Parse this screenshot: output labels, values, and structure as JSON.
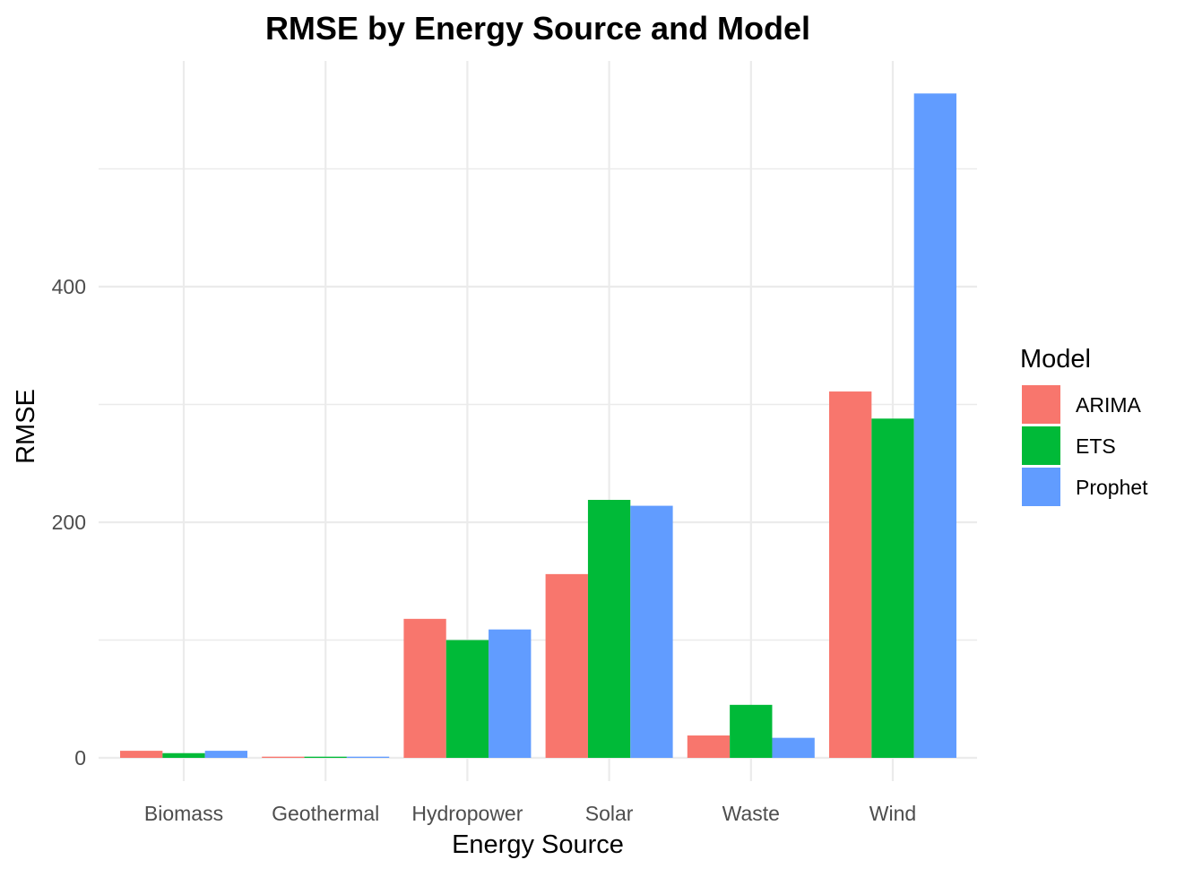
{
  "chart_data": {
    "type": "bar",
    "title": "RMSE by Energy Source and Model",
    "xlabel": "Energy Source",
    "ylabel": "RMSE",
    "categories": [
      "Biomass",
      "Geothermal",
      "Hydropower",
      "Solar",
      "Waste",
      "Wind"
    ],
    "series": [
      {
        "name": "ARIMA",
        "color": "#F8766D",
        "values": [
          6,
          1,
          118,
          156,
          19,
          311
        ]
      },
      {
        "name": "ETS",
        "color": "#00BA38",
        "values": [
          4,
          1,
          100,
          219,
          45,
          288
        ]
      },
      {
        "name": "Prophet",
        "color": "#619CFF",
        "values": [
          6,
          1,
          109,
          214,
          17,
          564
        ]
      }
    ],
    "yticks": [
      0,
      200,
      400
    ],
    "ylim": [
      -40,
      595
    ],
    "grid": true,
    "legend": {
      "title": "Model",
      "position": "right"
    }
  }
}
